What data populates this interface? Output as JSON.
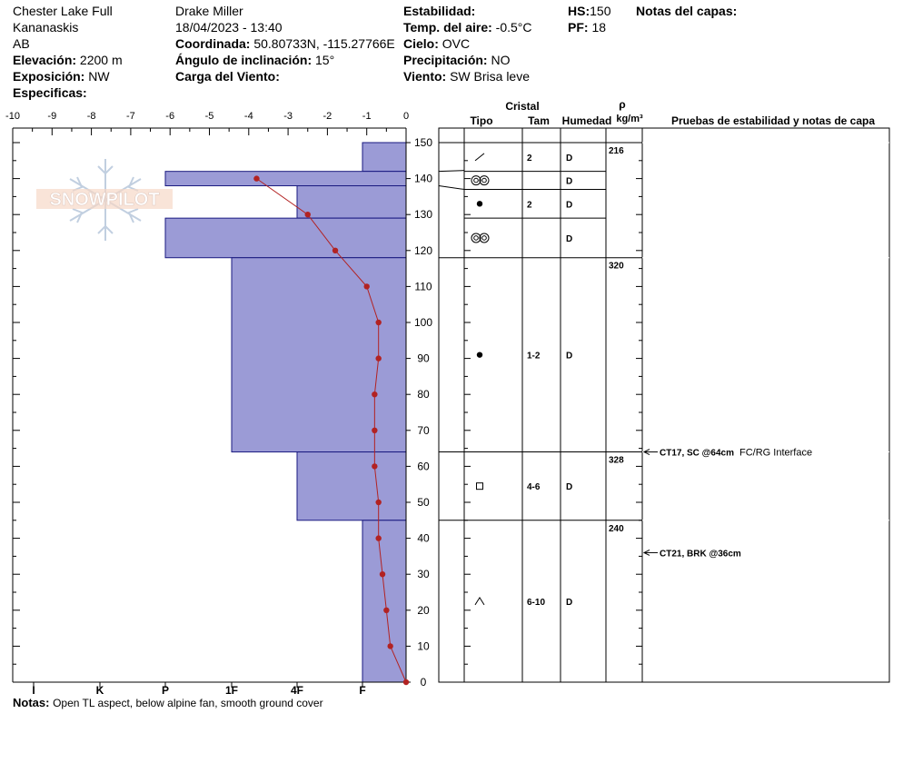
{
  "header": {
    "location": "Chester Lake Full",
    "region": "Kananaskis",
    "state": "AB",
    "elevation_label": "Elevación:",
    "elevation": "2200 m",
    "aspect_label": "Exposición:",
    "aspect": "NW",
    "specifics_label": "Especificas:",
    "observer": "Drake Miller",
    "datetime": "18/04/2023 - 13:40",
    "coord_label": "Coordinada:",
    "coord": "50.80733N, -115.27766E",
    "slope_label": "Ángulo de inclinación:",
    "slope": "15°",
    "wind_load_label": "Carga del Viento:",
    "stability_label": "Estabilidad:",
    "air_temp_label": "Temp. del aire:",
    "air_temp": "-0.5°C",
    "sky_label": "Cielo:",
    "sky": "OVC",
    "precip_label": "Precipitación:",
    "precip": "NO",
    "wind_label": "Viento:",
    "wind": "SW Brisa leve",
    "hs_label": "HS:",
    "hs": "150",
    "pf_label": "PF:",
    "pf": "18",
    "layer_notes_label": "Notas del capas:"
  },
  "logo": {
    "text": "SNOWPILOT"
  },
  "notes_label": "Notas:",
  "notes": "Open TL aspect, below alpine fan, smooth ground cover",
  "columns": {
    "cristal": "Cristal",
    "tipo": "Tipo",
    "tam": "Tam",
    "humedad": "Humedad",
    "rho": "ρ",
    "density_unit": "kg/m³",
    "tests": "Pruebas de estabilidad y notas de capa"
  },
  "chart_data": {
    "type": "snow_profile",
    "temp_axis": {
      "min": -10,
      "max": 0,
      "ticks": [
        -10,
        -9,
        -8,
        -7,
        -6,
        -5,
        -4,
        -3,
        -2,
        -1,
        0
      ]
    },
    "height_axis": {
      "min": 0,
      "max": 150,
      "ticks": [
        0,
        10,
        20,
        30,
        40,
        50,
        60,
        70,
        80,
        90,
        100,
        110,
        120,
        130,
        140,
        150
      ]
    },
    "hardness_labels": [
      "I",
      "K",
      "P",
      "1F",
      "4F",
      "F"
    ],
    "hardness_profile": [
      {
        "bottom": 142,
        "top": 150,
        "hardness": "F"
      },
      {
        "bottom": 138,
        "top": 142,
        "hardness": "P"
      },
      {
        "bottom": 129,
        "top": 138,
        "hardness": "4F"
      },
      {
        "bottom": 118,
        "top": 129,
        "hardness": "P"
      },
      {
        "bottom": 64,
        "top": 118,
        "hardness": "1F"
      },
      {
        "bottom": 45,
        "top": 64,
        "hardness": "4F"
      },
      {
        "bottom": 0,
        "top": 45,
        "hardness": "F"
      }
    ],
    "temperature_profile": [
      {
        "height": 140,
        "temp": -3.8
      },
      {
        "height": 130,
        "temp": -2.5
      },
      {
        "height": 120,
        "temp": -1.8
      },
      {
        "height": 110,
        "temp": -1.0
      },
      {
        "height": 100,
        "temp": -0.7
      },
      {
        "height": 90,
        "temp": -0.7
      },
      {
        "height": 80,
        "temp": -0.8
      },
      {
        "height": 70,
        "temp": -0.8
      },
      {
        "height": 60,
        "temp": -0.8
      },
      {
        "height": 50,
        "temp": -0.7
      },
      {
        "height": 40,
        "temp": -0.7
      },
      {
        "height": 30,
        "temp": -0.6
      },
      {
        "height": 20,
        "temp": -0.5
      },
      {
        "height": 10,
        "temp": -0.4
      },
      {
        "height": 0,
        "temp": 0.0
      }
    ],
    "layers": [
      {
        "top": 150,
        "bottom": 142,
        "type": "decomposing",
        "size": "2",
        "moisture": "D"
      },
      {
        "top": 142,
        "bottom": 137,
        "type": "graupel",
        "size": "",
        "moisture": "D"
      },
      {
        "top": 137,
        "bottom": 129,
        "type": "rounded",
        "size": "2",
        "moisture": "D"
      },
      {
        "top": 129,
        "bottom": 118,
        "type": "graupel",
        "size": "",
        "moisture": "D"
      },
      {
        "top": 118,
        "bottom": 64,
        "type": "rounded",
        "size": "1-2",
        "moisture": "D"
      },
      {
        "top": 64,
        "bottom": 45,
        "type": "faceted",
        "size": "4-6",
        "moisture": "D"
      },
      {
        "top": 45,
        "bottom": 0,
        "type": "depth_hoar",
        "size": "6-10",
        "moisture": "D"
      }
    ],
    "densities": [
      {
        "height": 150,
        "value": "216"
      },
      {
        "height": 118,
        "value": "320"
      },
      {
        "height": 64,
        "value": "328"
      },
      {
        "height": 45,
        "value": "240"
      }
    ],
    "tests": [
      {
        "height": 64,
        "label": "CT17, SC @64cm",
        "note": "FC/RG Interface"
      },
      {
        "height": 36,
        "label": "CT21, BRK @36cm",
        "note": ""
      }
    ]
  }
}
